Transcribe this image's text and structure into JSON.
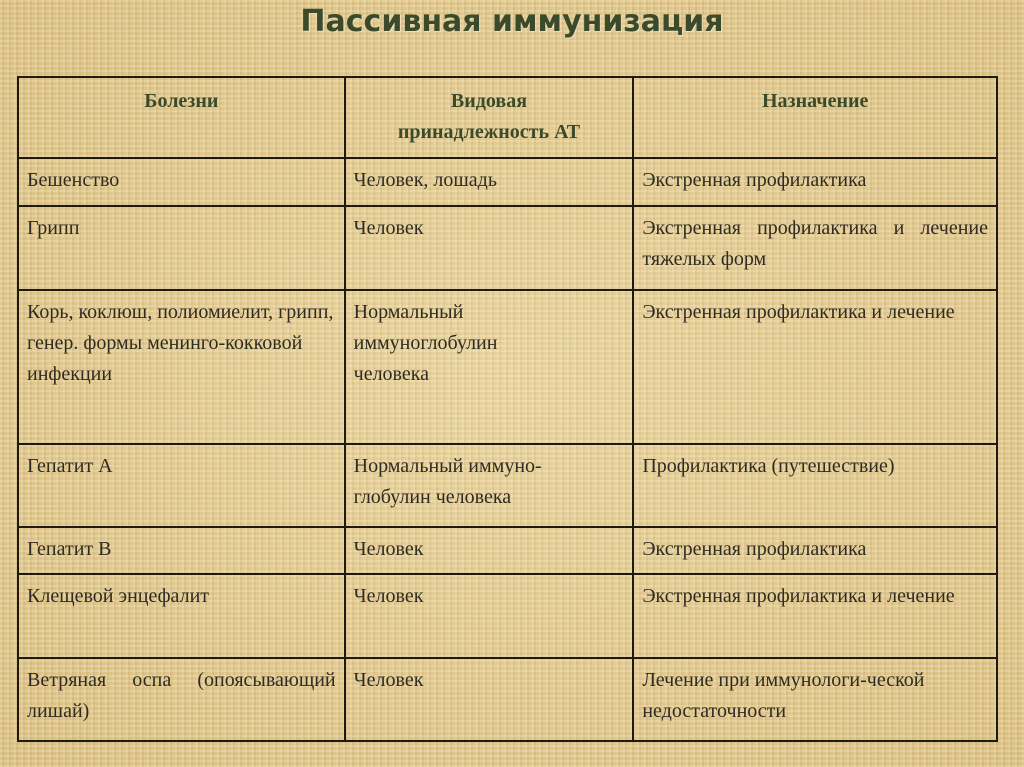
{
  "title": "Пассивная иммунизация",
  "table": {
    "headers": [
      "Болезни",
      "Видовая принадлежность АТ",
      "Назначение"
    ],
    "rows": [
      [
        "Бешенство",
        "Человек, лошадь",
        "Экстренная профилактика"
      ],
      [
        "Грипп",
        "Человек",
        "Экстренная профилактика и лечение тяжелых форм"
      ],
      [
        "Корь, коклюш, полиомиелит, грипп, генер. формы менинго-кокковой инфекции",
        "Нормальный иммуноглобулин человека",
        "Экстренная профилактика и лечение"
      ],
      [
        "Гепатит А",
        "Нормальный иммуно-глобулин человека",
        "Профилактика (путешествие)"
      ],
      [
        "Гепатит В",
        "Человек",
        "Экстренная профилактика"
      ],
      [
        "Клещевой энцефалит",
        "Человек",
        "Экстренная профилактика и лечение"
      ],
      [
        "Ветряная оспа (опоясывающий лишай)",
        "Человек",
        "Лечение при иммунологи-ческой недостаточности"
      ]
    ]
  }
}
